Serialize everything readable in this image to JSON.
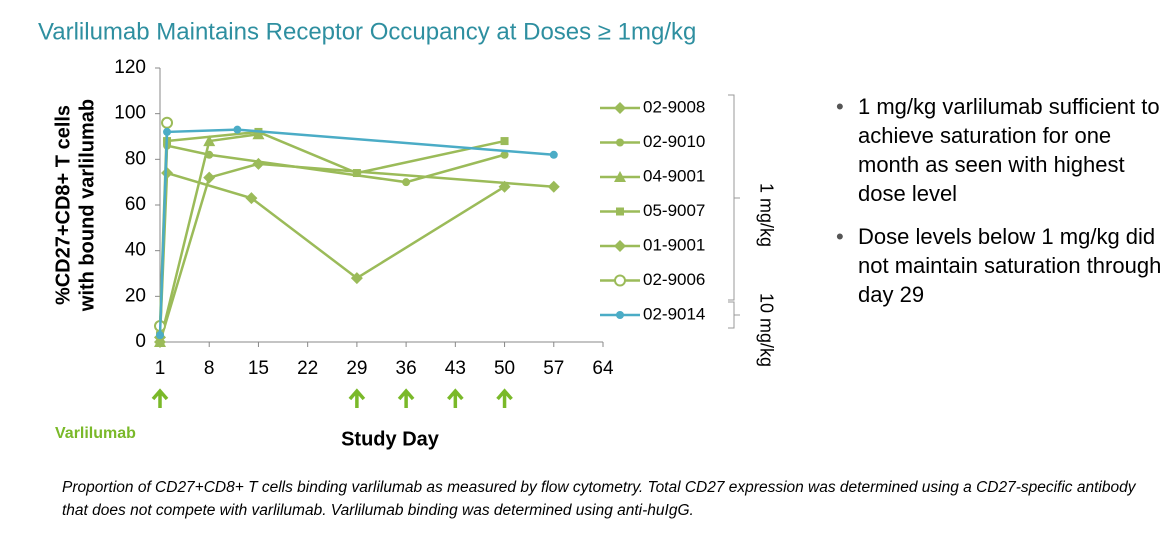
{
  "chart_data": {
    "type": "line",
    "title": "Varlilumab Maintains Receptor Occupancy at Doses ≥ 1mg/kg",
    "x_label": "Study Day",
    "y_label": [
      "%CD27+CD8+ T cells",
      "with bound varlilumab"
    ],
    "xlim": [
      1,
      64
    ],
    "xticks": [
      1,
      8,
      15,
      22,
      29,
      36,
      43,
      50,
      57,
      64
    ],
    "ylim": [
      0,
      120
    ],
    "yticks": [
      0,
      20,
      40,
      60,
      80,
      100,
      120
    ],
    "grid": false,
    "series": [
      {
        "name": "02-9008",
        "color": "#9bbb59",
        "marker": "diamond",
        "x": [
          1,
          2,
          14,
          29,
          50
        ],
        "values": [
          2,
          74,
          63,
          28,
          68
        ]
      },
      {
        "name": "02-9010",
        "color": "#9bbb59",
        "marker": "circle",
        "x": [
          1,
          2,
          8,
          36,
          50
        ],
        "values": [
          2,
          86,
          82,
          70,
          82
        ]
      },
      {
        "name": "04-9001",
        "color": "#9bbb59",
        "marker": "triangle",
        "x": [
          1,
          8,
          15
        ],
        "values": [
          0,
          88,
          91
        ]
      },
      {
        "name": "05-9007",
        "color": "#9bbb59",
        "marker": "square",
        "x": [
          1,
          2,
          15,
          29,
          50
        ],
        "values": [
          3,
          88,
          92,
          74,
          88
        ]
      },
      {
        "name": "01-9001",
        "color": "#9bbb59",
        "marker": "diamond",
        "x": [
          1,
          8,
          15,
          57
        ],
        "values": [
          0,
          72,
          78,
          68
        ]
      },
      {
        "name": "02-9006",
        "color": "#9bbb59",
        "marker": "open-circle",
        "x": [
          1,
          2
        ],
        "values": [
          7,
          96
        ]
      },
      {
        "name": "02-9014",
        "color": "#4bacc6",
        "marker": "circle",
        "x": [
          1,
          2,
          12,
          57
        ],
        "values": [
          3,
          92,
          93,
          82
        ]
      }
    ],
    "dose_groups": [
      "1 mg/kg",
      "10 mg/kg"
    ],
    "dose_label": "Varlilumab",
    "dose_days": [
      1,
      29,
      36,
      43,
      50
    ],
    "dose_color": "#7ab929"
  },
  "bullets": [
    "1 mg/kg varlilumab sufficient to achieve saturation for one month as seen with highest dose level",
    "Dose levels below 1 mg/kg did not maintain saturation through day 29"
  ],
  "caption": "Proportion of CD27+CD8+ T cells binding varlilumab as measured by flow cytometry.  Total CD27 expression was determined using a CD27-specific antibody that does not compete with varlilumab.  Varlilumab binding was determined using anti-huIgG."
}
